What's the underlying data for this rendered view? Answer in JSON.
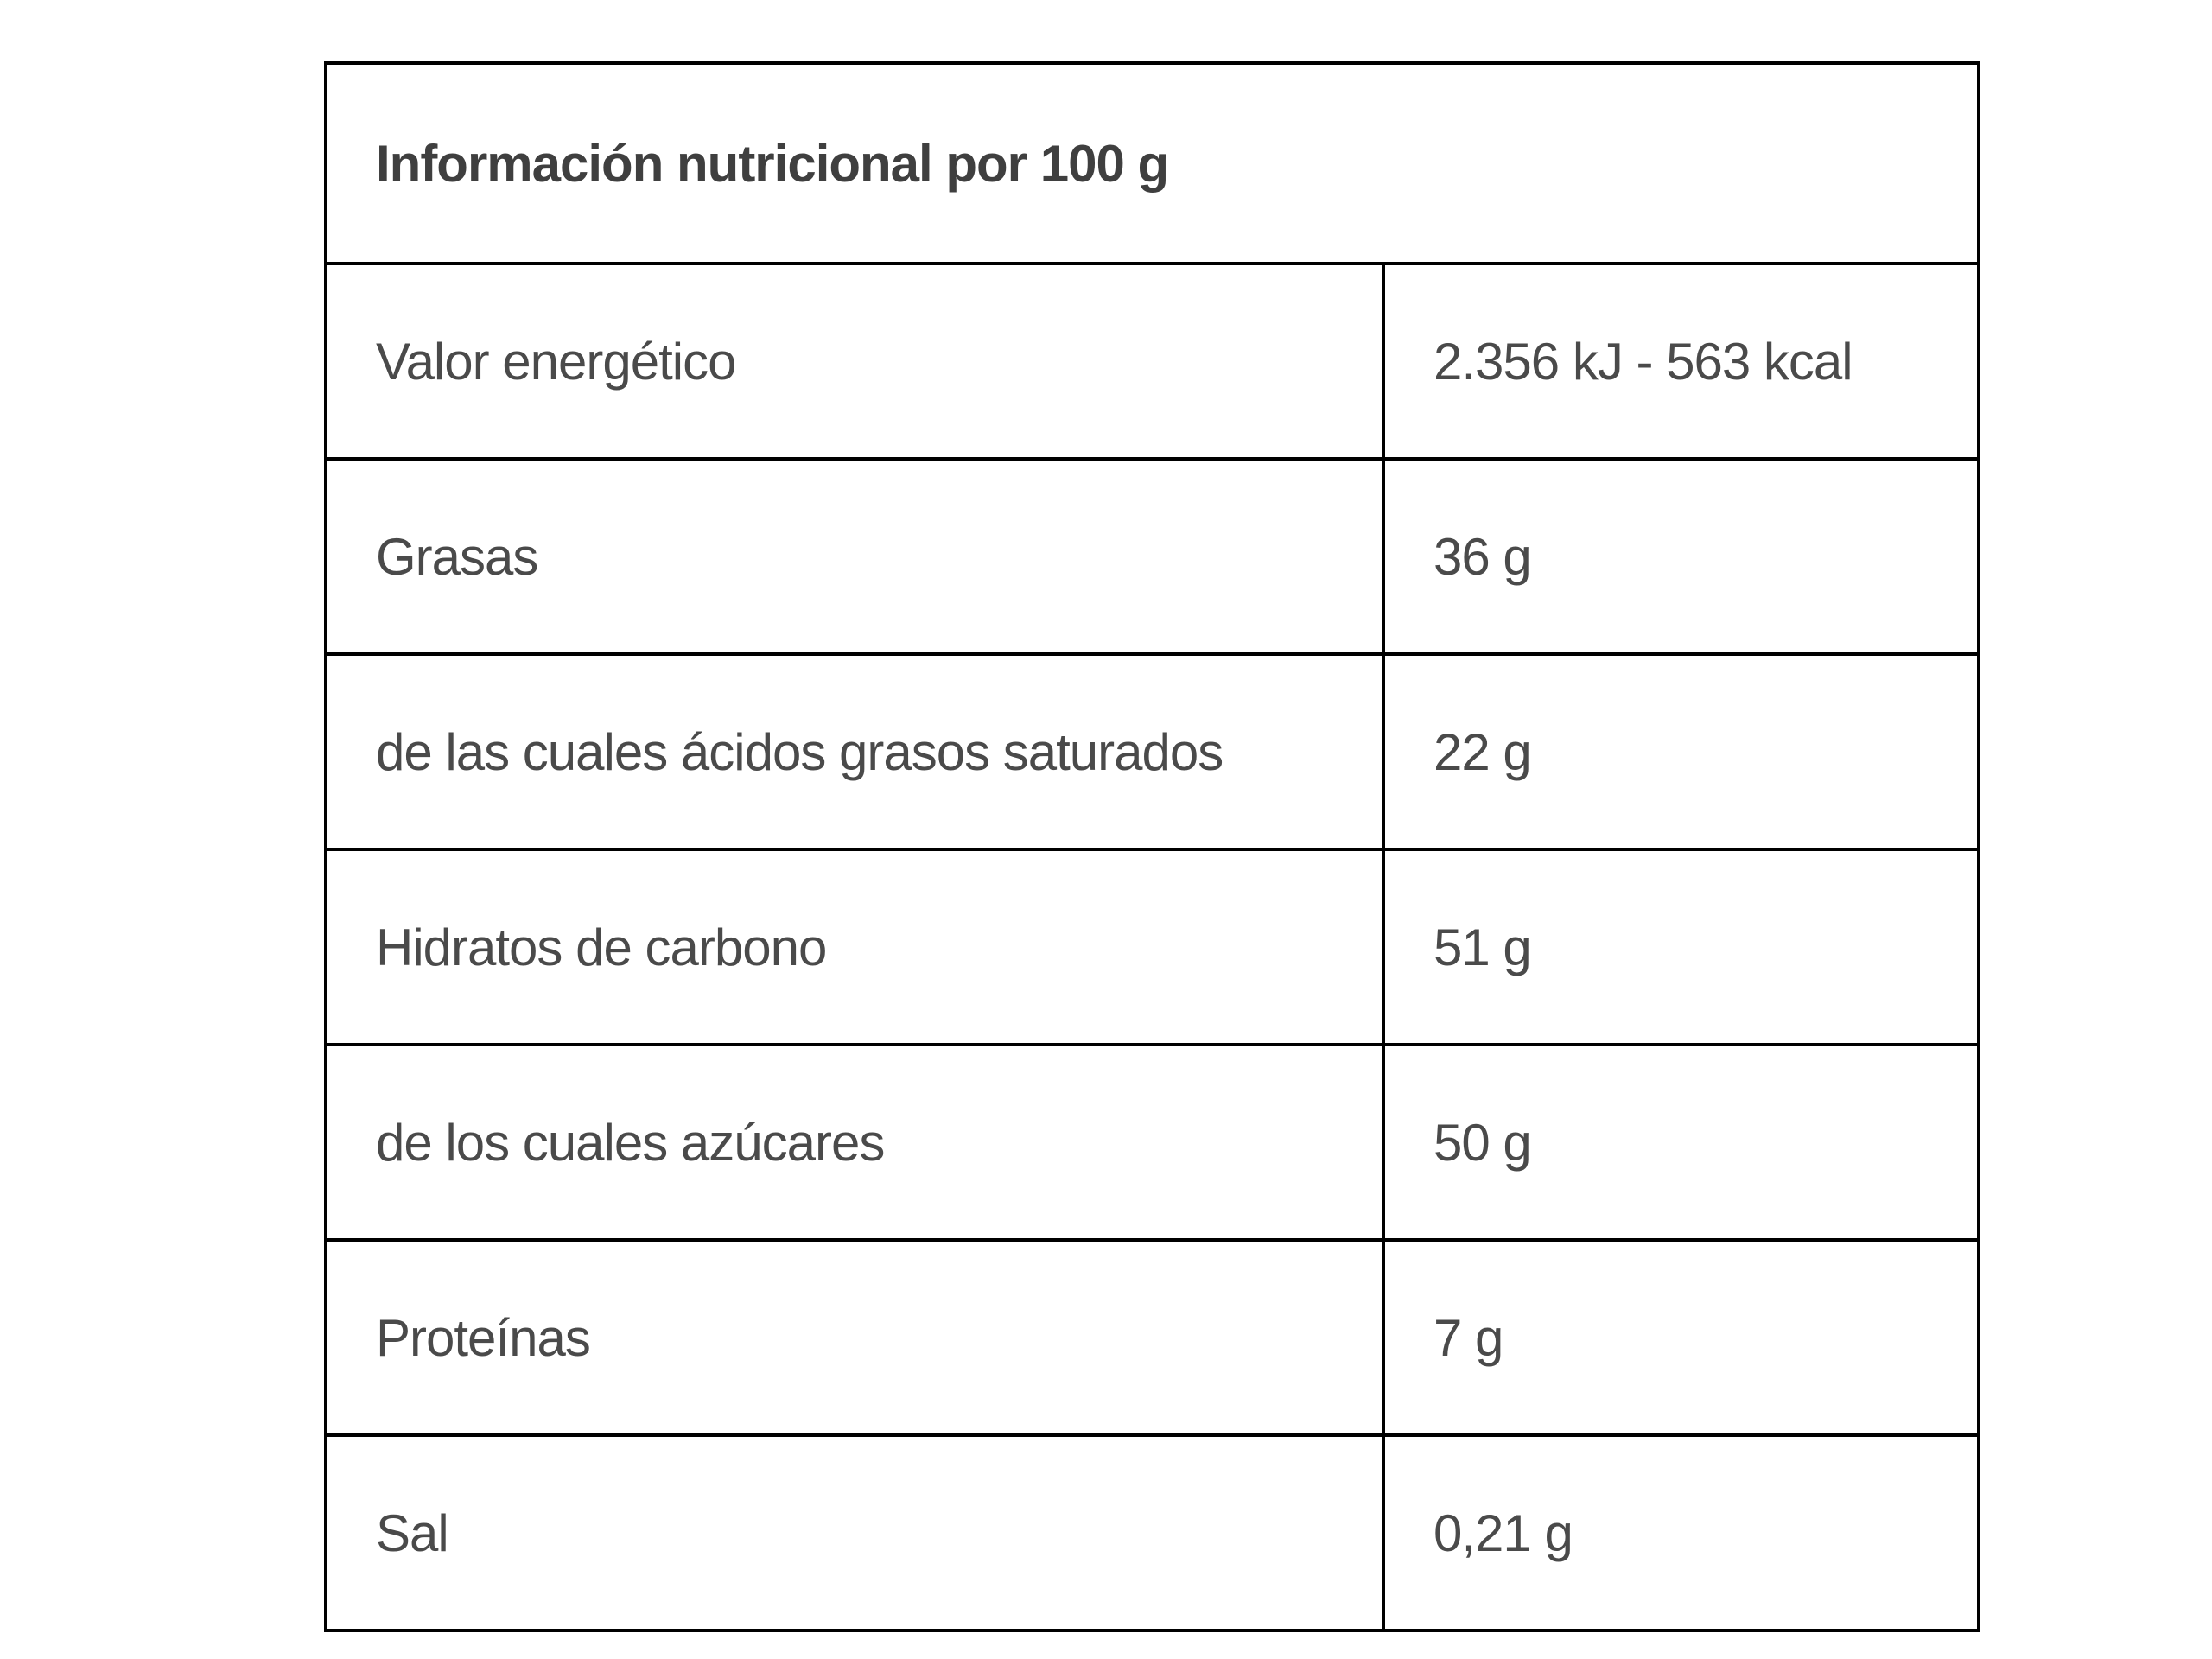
{
  "table": {
    "title": "Información nutricional por 100 g",
    "rows": [
      {
        "label": "Valor energético",
        "value": "2.356 kJ - 563 kcal"
      },
      {
        "label": "Grasas",
        "value": "36 g"
      },
      {
        "label": "de las cuales ácidos grasos saturados",
        "value": "22 g"
      },
      {
        "label": "Hidratos de carbono",
        "value": "51 g"
      },
      {
        "label": "de los cuales azúcares",
        "value": "50 g"
      },
      {
        "label": "Proteínas",
        "value": "7 g"
      },
      {
        "label": "Sal",
        "value": "0,21 g"
      }
    ]
  }
}
